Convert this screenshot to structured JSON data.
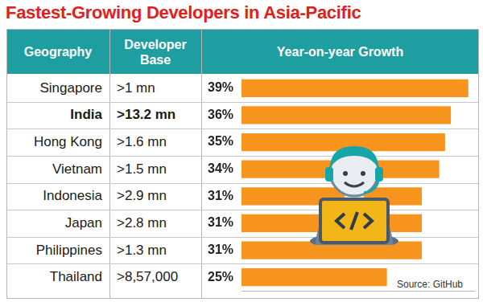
{
  "chart_data": {
    "type": "bar",
    "orientation": "horizontal",
    "title": "Fastest-Growing Developers in Asia-Pacific",
    "columns": [
      "Geography",
      "Developer Base",
      "Year-on-year Growth"
    ],
    "categories": [
      "Singapore",
      "India",
      "Hong Kong",
      "Vietnam",
      "Indonesia",
      "Japan",
      "Philippines",
      "Thailand"
    ],
    "developer_base": [
      ">1 mn",
      ">13.2 mn",
      ">1.6 mn",
      ">1.5 mn",
      ">2.9 mn",
      ">2.8 mn",
      ">1.3 mn",
      ">8,57,000"
    ],
    "values": [
      39,
      36,
      35,
      34,
      31,
      31,
      31,
      25
    ],
    "value_labels": [
      "39%",
      "36%",
      "35%",
      "34%",
      "31%",
      "31%",
      "31%",
      "25%"
    ],
    "data_labels": true,
    "color": "#f7941d",
    "xlim": [
      0,
      40
    ],
    "tick_labels": false,
    "grid": false,
    "source": "Source: GitHub"
  }
}
